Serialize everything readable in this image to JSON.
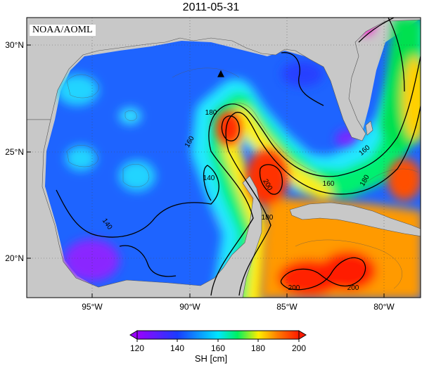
{
  "title": "2011-05-31",
  "credit": "NOAA/AOML",
  "axes": {
    "lat_ticks": [
      "30°N",
      "25°N",
      "20°N"
    ],
    "lon_ticks": [
      "95°W",
      "90°W",
      "85°W",
      "80°W"
    ]
  },
  "contour_labels": [
    "180",
    "160",
    "140",
    "140",
    "160",
    "180",
    "200",
    "160",
    "180",
    "200",
    "200"
  ],
  "marker": {
    "symbol": "▲",
    "name": "station marker"
  },
  "colorbar": {
    "label": "SH [cm]",
    "ticks": [
      "120",
      "140",
      "160",
      "180",
      "200"
    ],
    "range": [
      120,
      200
    ],
    "extend": "both"
  },
  "colors": {
    "land": "#c8c8c8",
    "cm120": "#9a00ff",
    "cm140": "#1a3cff",
    "cm160": "#00e6ff",
    "cm170": "#00f060",
    "cm180": "#ffee00",
    "cm190": "#ff7a00",
    "cm200": "#ff1a00"
  }
}
